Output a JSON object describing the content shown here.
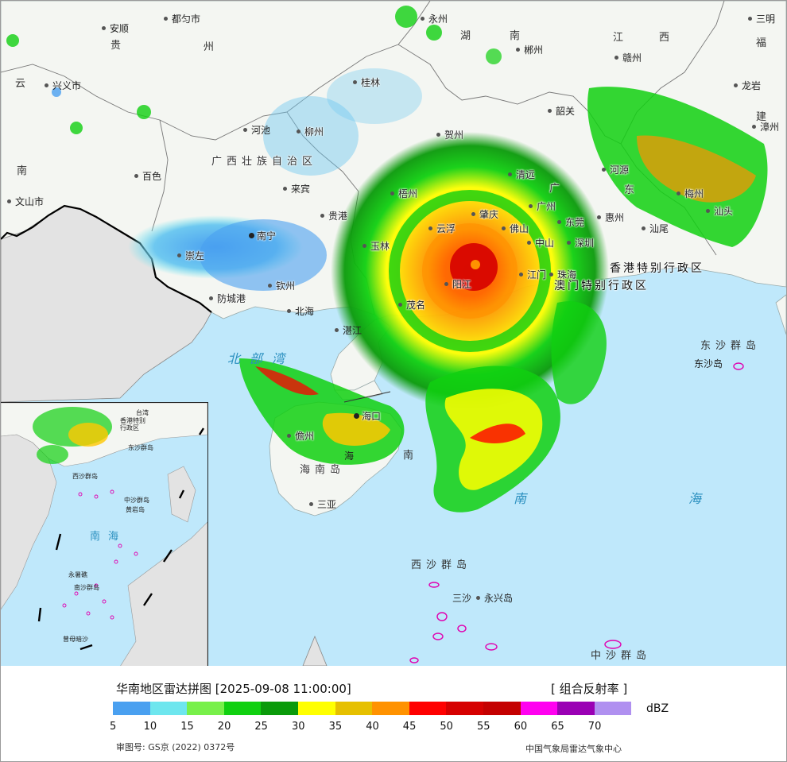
{
  "footer": {
    "title": "华南地区雷达拼图 [2025-09-08 11:00:00]",
    "product": "[ 组合反射率 ]",
    "unit": "dBZ",
    "approval": "审图号: GS京 (2022) 0372号",
    "publisher": "中国气象局雷达气象中心"
  },
  "legend": {
    "colors": [
      "#4aa0f0",
      "#6ee6ee",
      "#78f04a",
      "#10d010",
      "#0a9a0a",
      "#ffff00",
      "#e6c000",
      "#ff9200",
      "#ff0000",
      "#d60000",
      "#c40000",
      "#ff00f0",
      "#9a00b4",
      "#b090f0"
    ],
    "ticks": [
      "5",
      "10",
      "15",
      "20",
      "25",
      "30",
      "35",
      "40",
      "45",
      "50",
      "55",
      "60",
      "65",
      "70"
    ]
  },
  "labels": {
    "provinces": {
      "guizhou": "贵",
      "guizhou2": "州",
      "hunan": "湖",
      "hunan2": "南",
      "jiangxi": "江",
      "jiangxi2": "西",
      "fujian": "福",
      "fujian2": "建",
      "yunnan": "云",
      "yunnan2": "南",
      "guangxi": "广西壮族自治区",
      "guangdong": "广",
      "guangdong2": "东",
      "hainan": "海南岛"
    },
    "cities": {
      "duyun": "都匀市",
      "anshun": "安顺",
      "xingyi": "兴义市",
      "yongzhou": "永州",
      "chenzhou": "郴州",
      "ganzhou": "赣州",
      "sanming": "三明",
      "longyan": "龙岩",
      "zhangzhou": "漳州",
      "guilin": "桂林",
      "hechi": "河池",
      "liuzhou": "柳州",
      "shaoguan": "韶关",
      "heyuan": "河源",
      "meizhou": "梅州",
      "shantou": "汕头",
      "shanwei": "汕尾",
      "huizhou": "惠州",
      "dongguan": "东莞",
      "guangzhou": "广州",
      "qingyuan": "清远",
      "zhaoqing": "肇庆",
      "foshan": "佛山",
      "zhongshan": "中山",
      "shenzhen": "深圳",
      "zhuhai": "珠海",
      "jiangmen": "江门",
      "yangjiang": "阳江",
      "maoming": "茂名",
      "yunfu": "云浮",
      "wuzhou": "梧州",
      "hezhou": "贺州",
      "guigang": "贵港",
      "yulin": "玉林",
      "baise": "百色",
      "laibin": "来宾",
      "nanning": "南宁",
      "chongzuo": "崇左",
      "qinzhou": "钦州",
      "fangchenggang": "防城港",
      "beihai": "北海",
      "zhanjiang": "湛江",
      "haikou": "海口",
      "danzhou": "儋州",
      "sanya": "三亚",
      "wenshan": "文山市",
      "sansha": "三沙",
      "yongxing": "永兴岛"
    },
    "sar": {
      "hk": "香港特别行政区",
      "macau": "澳门特别行政区"
    },
    "islands": {
      "dongsha": "东沙群岛",
      "dongsha_island": "东沙岛",
      "xisha": "西沙群岛",
      "zhongsha": "中沙群岛"
    },
    "seas": {
      "beibu": "北部湾",
      "nanhai1": "南",
      "nanhai2": "海",
      "qiongzhou": "海"
    },
    "inset": {
      "nanhai": "南海",
      "xisha": "西沙群岛",
      "zhongsha": "中沙群岛",
      "huangyan": "黄岩岛",
      "nansha": "南沙群岛",
      "zengmu": "曾母暗沙",
      "dongsha": "东沙群岛",
      "taiwan": "台湾",
      "hk": "香港特别",
      "hk2": "行政区",
      "yongshu": "永暑礁"
    }
  }
}
